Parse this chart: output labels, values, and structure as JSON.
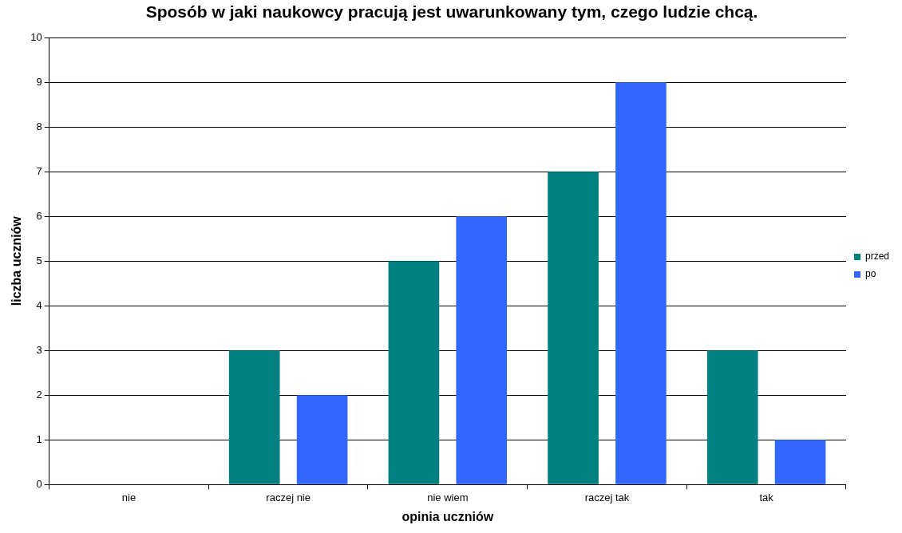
{
  "chart_data": {
    "type": "bar",
    "title": "Sposób w jaki naukowcy pracują jest uwarunkowany tym, czego ludzie chcą.",
    "xlabel": "opinia uczniów",
    "ylabel": "liczba uczniów",
    "categories": [
      "nie",
      "raczej nie",
      "nie wiem",
      "raczej tak",
      "tak"
    ],
    "series": [
      {
        "name": "przed",
        "color": "#008080",
        "values": [
          0,
          3,
          5,
          7,
          3
        ]
      },
      {
        "name": "po",
        "color": "#3366ff",
        "values": [
          0,
          2,
          6,
          9,
          1
        ]
      }
    ],
    "ylim": [
      0,
      10
    ],
    "yticks": [
      0,
      1,
      2,
      3,
      4,
      5,
      6,
      7,
      8,
      9,
      10
    ],
    "grid": "y",
    "legend": "right"
  }
}
